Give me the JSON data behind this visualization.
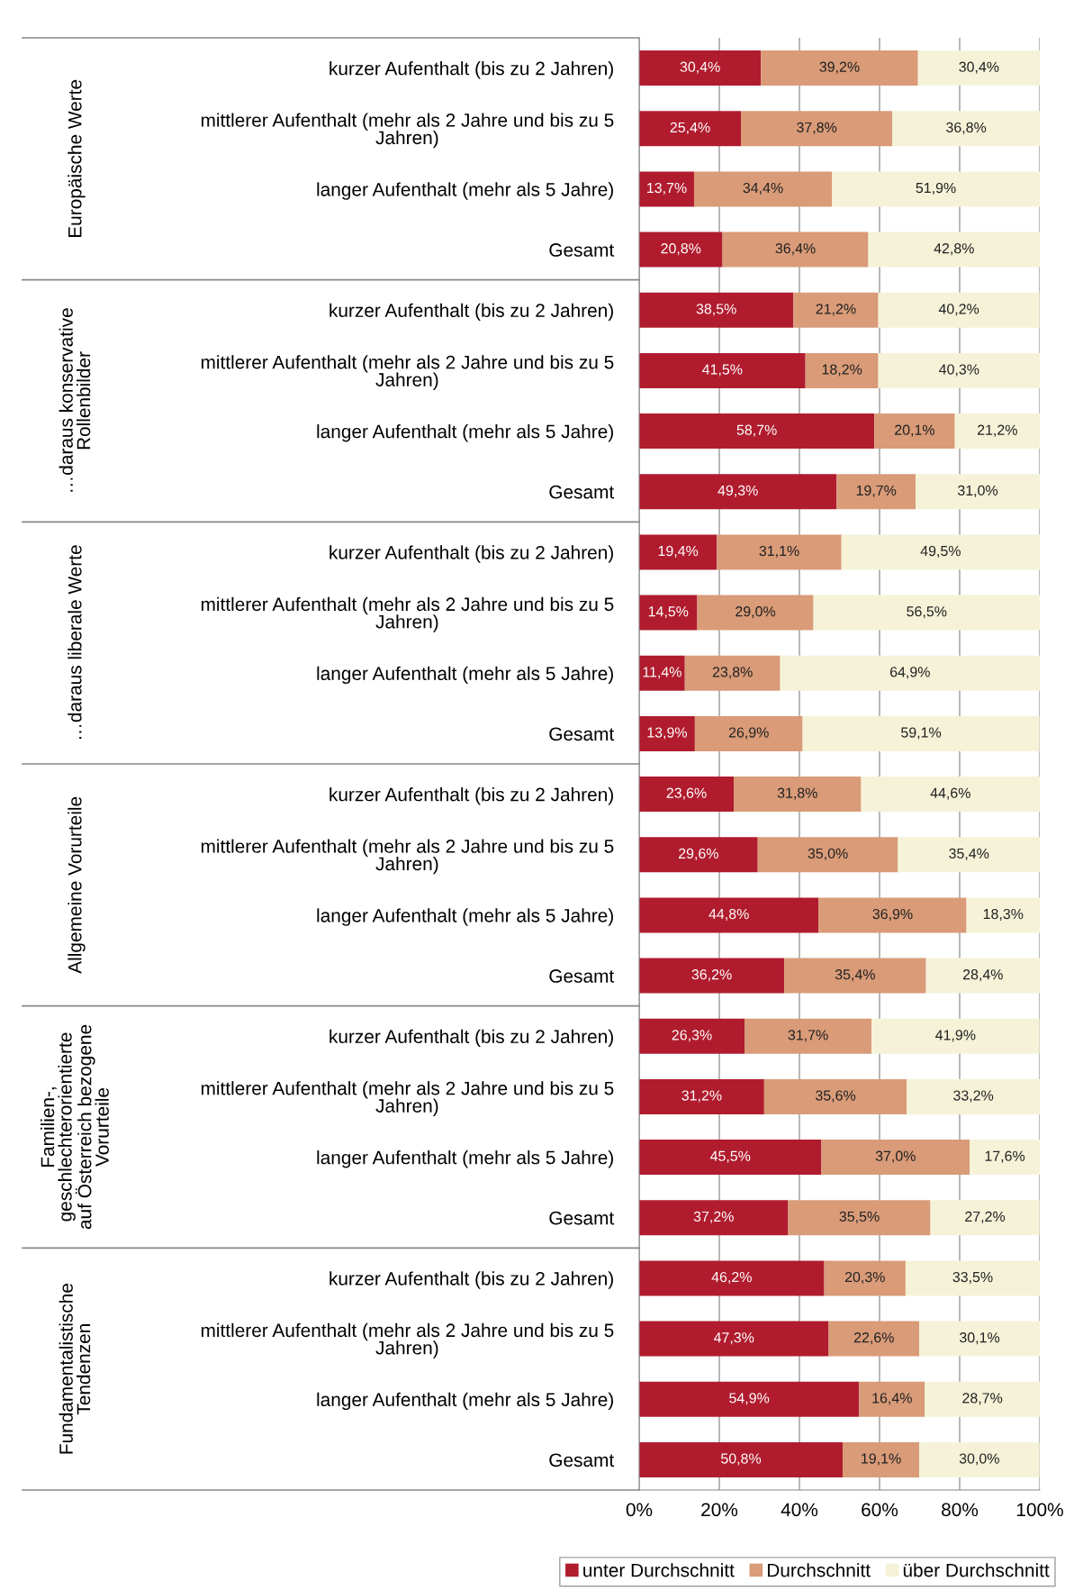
{
  "chart_data": {
    "type": "bar",
    "orientation": "horizontal",
    "stacked": true,
    "categories": [
      "kurzer Aufenthalt (bis zu 2 Jahren)",
      "mittlerer Aufenthalt (mehr als 2 Jahre und bis zu 5 Jahren)",
      "langer Aufenthalt (mehr als 5 Jahre)",
      "Gesamt",
      "kurzer Aufenthalt (bis zu 2 Jahren)",
      "mittlerer Aufenthalt (mehr als 2 Jahre und bis zu 5 Jahren)",
      "langer Aufenthalt (mehr als 5 Jahre)",
      "Gesamt",
      "kurzer Aufenthalt (bis zu 2 Jahren)",
      "mittlerer Aufenthalt (mehr als 2 Jahre und bis zu 5 Jahren)",
      "langer Aufenthalt (mehr als 5 Jahre)",
      "Gesamt",
      "kurzer Aufenthalt (bis zu 2 Jahren)",
      "mittlerer Aufenthalt (mehr als 2 Jahre und bis zu 5 Jahren)",
      "langer Aufenthalt (mehr als 5 Jahre)",
      "Gesamt",
      "kurzer Aufenthalt (bis zu 2 Jahren)",
      "mittlerer Aufenthalt (mehr als 2 Jahre und bis zu 5 Jahren)",
      "langer Aufenthalt (mehr als 5 Jahre)",
      "Gesamt",
      "kurzer Aufenthalt (bis zu 2 Jahren)",
      "mittlerer Aufenthalt (mehr als 2 Jahre und bis zu 5 Jahren)",
      "langer Aufenthalt (mehr als 5 Jahre)",
      "Gesamt"
    ],
    "annotations": [
      "Europäische Werte",
      "…daraus konservative Rollenbilder",
      "…daraus liberale Werte",
      "Allgemeine Vorurteile",
      "Familien-, geschlechterorientierte auf Österreich bezogene Vorurteile",
      "Fundamentalistische Tendenzen"
    ],
    "series": [
      {
        "name": "unter Durchschnitt",
        "color": "#b01c2e",
        "values": [
          30.4,
          25.4,
          13.7,
          20.8,
          38.5,
          41.5,
          58.7,
          49.3,
          19.4,
          14.5,
          11.4,
          13.9,
          23.6,
          29.6,
          44.8,
          36.2,
          26.3,
          31.2,
          45.5,
          37.2,
          46.2,
          47.3,
          54.9,
          50.8
        ],
        "value_labels": [
          "30,4%",
          "25,4%",
          "13,7%",
          "20,8%",
          "38,5%",
          "41,5%",
          "58,7%",
          "49,3%",
          "19,4%",
          "14,5%",
          "11,4%",
          "13,9%",
          "23,6%",
          "29,6%",
          "44,8%",
          "36,2%",
          "26,3%",
          "31,2%",
          "45,5%",
          "37,2%",
          "46,2%",
          "47,3%",
          "54,9%",
          "50,8%"
        ]
      },
      {
        "name": "Durchschnitt",
        "color": "#d99b78",
        "values": [
          39.2,
          37.8,
          34.4,
          36.4,
          21.2,
          18.2,
          20.1,
          19.7,
          31.1,
          29.0,
          23.8,
          26.9,
          31.8,
          35.0,
          36.9,
          35.4,
          31.7,
          35.6,
          37.0,
          35.5,
          20.3,
          22.6,
          16.4,
          19.1
        ],
        "value_labels": [
          "39,2%",
          "37,8%",
          "34,4%",
          "36,4%",
          "21,2%",
          "18,2%",
          "20,1%",
          "19,7%",
          "31,1%",
          "29,0%",
          "23,8%",
          "26,9%",
          "31,8%",
          "35,0%",
          "36,9%",
          "35,4%",
          "31,7%",
          "35,6%",
          "37,0%",
          "35,5%",
          "20,3%",
          "22,6%",
          "16,4%",
          "19,1%"
        ]
      },
      {
        "name": "über Durchschnitt",
        "color": "#f5f2d8",
        "values": [
          30.4,
          36.8,
          51.9,
          42.8,
          40.2,
          40.3,
          21.2,
          31.0,
          49.5,
          56.5,
          64.9,
          59.1,
          44.6,
          35.4,
          18.3,
          28.4,
          41.9,
          33.2,
          17.6,
          27.2,
          33.5,
          30.1,
          28.7,
          30.0
        ],
        "value_labels": [
          "30,4%",
          "36,8%",
          "51,9%",
          "42,8%",
          "40,2%",
          "40,3%",
          "21,2%",
          "31,0%",
          "49,5%",
          "56,5%",
          "64,9%",
          "59,1%",
          "44,6%",
          "35,4%",
          "18,3%",
          "28,4%",
          "41,9%",
          "33,2%",
          "17,6%",
          "27,2%",
          "33,5%",
          "30,1%",
          "28,7%",
          "30,0%"
        ]
      }
    ],
    "xlim": [
      0,
      100
    ],
    "xticks": [
      {
        "value": 0,
        "label": "0%"
      },
      {
        "value": 20,
        "label": "20%"
      },
      {
        "value": 40,
        "label": "40%"
      },
      {
        "value": 60,
        "label": "60%"
      },
      {
        "value": 80,
        "label": "80%"
      },
      {
        "value": 100,
        "label": "100%"
      }
    ],
    "grid": "x",
    "legend": "bottom"
  }
}
